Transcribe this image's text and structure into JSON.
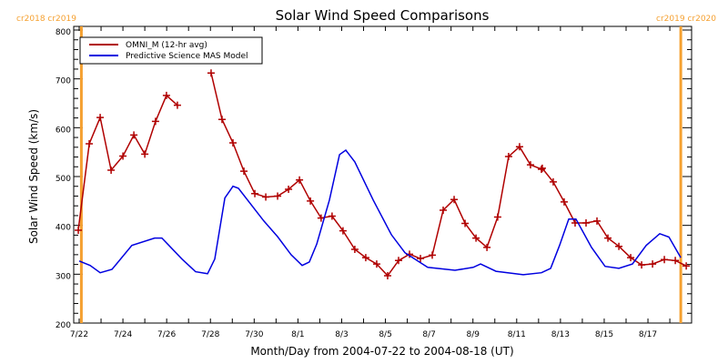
{
  "chart_data": {
    "type": "line",
    "title": "Solar Wind Speed Comparisons",
    "xlabel": "Month/Day from 2004-07-22 to 2004-08-18 (UT)",
    "ylabel": "Solar Wind Speed (km/s)",
    "ylim": [
      200,
      800
    ],
    "xlim_days": [
      -0.25,
      28.0
    ],
    "y_ticks": [
      "200",
      "300",
      "400",
      "500",
      "600",
      "700",
      "800"
    ],
    "y_tick_values": [
      200,
      300,
      400,
      500,
      600,
      700,
      800
    ],
    "x_ticks": [
      "7/22",
      "7/24",
      "7/26",
      "7/28",
      "7/30",
      "8/1",
      "8/3",
      "8/5",
      "8/7",
      "8/9",
      "8/11",
      "8/13",
      "8/15",
      "8/17"
    ],
    "x_tick_days": [
      0,
      2,
      4,
      6,
      8,
      10,
      12,
      14,
      16,
      18,
      20,
      22,
      24,
      26
    ],
    "carrington_markers": [
      {
        "day": 0.1,
        "labels": "cr2018 cr2019",
        "side": "left"
      },
      {
        "day": 27.5,
        "labels": "cr2019 cr2020",
        "side": "right"
      }
    ],
    "legend": {
      "placement": "top-left"
    },
    "colors": {
      "omni": "#b00000",
      "mas": "#0000e0",
      "marker": "#f5a030"
    },
    "series": [
      {
        "name": "OMNI_M (12-hr avg)",
        "key": "omni",
        "segments": [
          [
            [
              -0.04,
              390
            ],
            [
              0.46,
              567
            ],
            [
              0.96,
              621
            ],
            [
              1.46,
              513
            ],
            [
              2.0,
              542
            ],
            [
              2.5,
              585
            ],
            [
              3.0,
              546
            ],
            [
              3.49,
              613
            ],
            [
              3.99,
              666
            ],
            [
              4.49,
              646
            ]
          ],
          [
            [
              6.03,
              712
            ],
            [
              6.53,
              617
            ],
            [
              7.03,
              569
            ],
            [
              7.53,
              511
            ],
            [
              8.03,
              465
            ],
            [
              8.53,
              458
            ],
            [
              9.07,
              460
            ],
            [
              9.57,
              474
            ],
            [
              10.07,
              493
            ],
            [
              10.57,
              450
            ],
            [
              11.06,
              415
            ],
            [
              11.56,
              419
            ],
            [
              12.06,
              389
            ],
            [
              12.6,
              351
            ],
            [
              13.1,
              334
            ],
            [
              13.6,
              321
            ],
            [
              14.1,
              297
            ],
            [
              14.6,
              328
            ],
            [
              15.1,
              341
            ],
            [
              15.6,
              332
            ],
            [
              16.14,
              339
            ],
            [
              16.64,
              431
            ],
            [
              17.14,
              453
            ],
            [
              17.64,
              404
            ],
            [
              18.14,
              374
            ],
            [
              18.64,
              355
            ],
            [
              19.13,
              417
            ],
            [
              19.63,
              541
            ],
            [
              20.13,
              561
            ],
            [
              20.63,
              524
            ],
            [
              21.13,
              515
            ],
            [
              21.17,
              517
            ],
            [
              21.67,
              489
            ],
            [
              22.17,
              448
            ],
            [
              22.67,
              405
            ],
            [
              23.17,
              405
            ],
            [
              23.67,
              409
            ],
            [
              24.17,
              374
            ],
            [
              24.67,
              357
            ],
            [
              25.21,
              334
            ],
            [
              25.71,
              319
            ],
            [
              26.21,
              321
            ],
            [
              26.75,
              330
            ],
            [
              27.25,
              328
            ],
            [
              27.75,
              317
            ]
          ]
        ]
      },
      {
        "name": "Predictive Science MAS Model",
        "key": "mas",
        "segments": [
          [
            [
              0.0,
              327
            ],
            [
              0.5,
              318
            ],
            [
              0.96,
              303
            ],
            [
              1.5,
              310
            ],
            [
              2.41,
              359
            ],
            [
              3.45,
              374
            ],
            [
              3.78,
              374
            ],
            [
              4.7,
              331
            ],
            [
              5.32,
              305
            ],
            [
              5.87,
              301
            ],
            [
              6.2,
              331
            ],
            [
              6.66,
              456
            ],
            [
              7.03,
              480
            ],
            [
              7.28,
              476
            ],
            [
              8.44,
              409
            ],
            [
              9.07,
              377
            ],
            [
              9.69,
              340
            ],
            [
              10.19,
              318
            ],
            [
              10.52,
              325
            ],
            [
              10.86,
              362
            ],
            [
              11.44,
              452
            ],
            [
              11.9,
              545
            ],
            [
              12.19,
              554
            ],
            [
              12.6,
              530
            ],
            [
              13.44,
              452
            ],
            [
              14.27,
              381
            ],
            [
              14.89,
              344
            ],
            [
              15.93,
              314
            ],
            [
              17.18,
              308
            ],
            [
              18.01,
              314
            ],
            [
              18.35,
              321
            ],
            [
              19.05,
              306
            ],
            [
              20.3,
              299
            ],
            [
              21.13,
              303
            ],
            [
              21.55,
              312
            ],
            [
              21.96,
              359
            ],
            [
              22.38,
              413
            ],
            [
              22.71,
              413
            ],
            [
              23.42,
              355
            ],
            [
              24.04,
              316
            ],
            [
              24.67,
              312
            ],
            [
              25.29,
              321
            ],
            [
              25.92,
              359
            ],
            [
              26.54,
              383
            ],
            [
              26.96,
              376
            ],
            [
              27.5,
              334
            ]
          ]
        ]
      }
    ]
  }
}
